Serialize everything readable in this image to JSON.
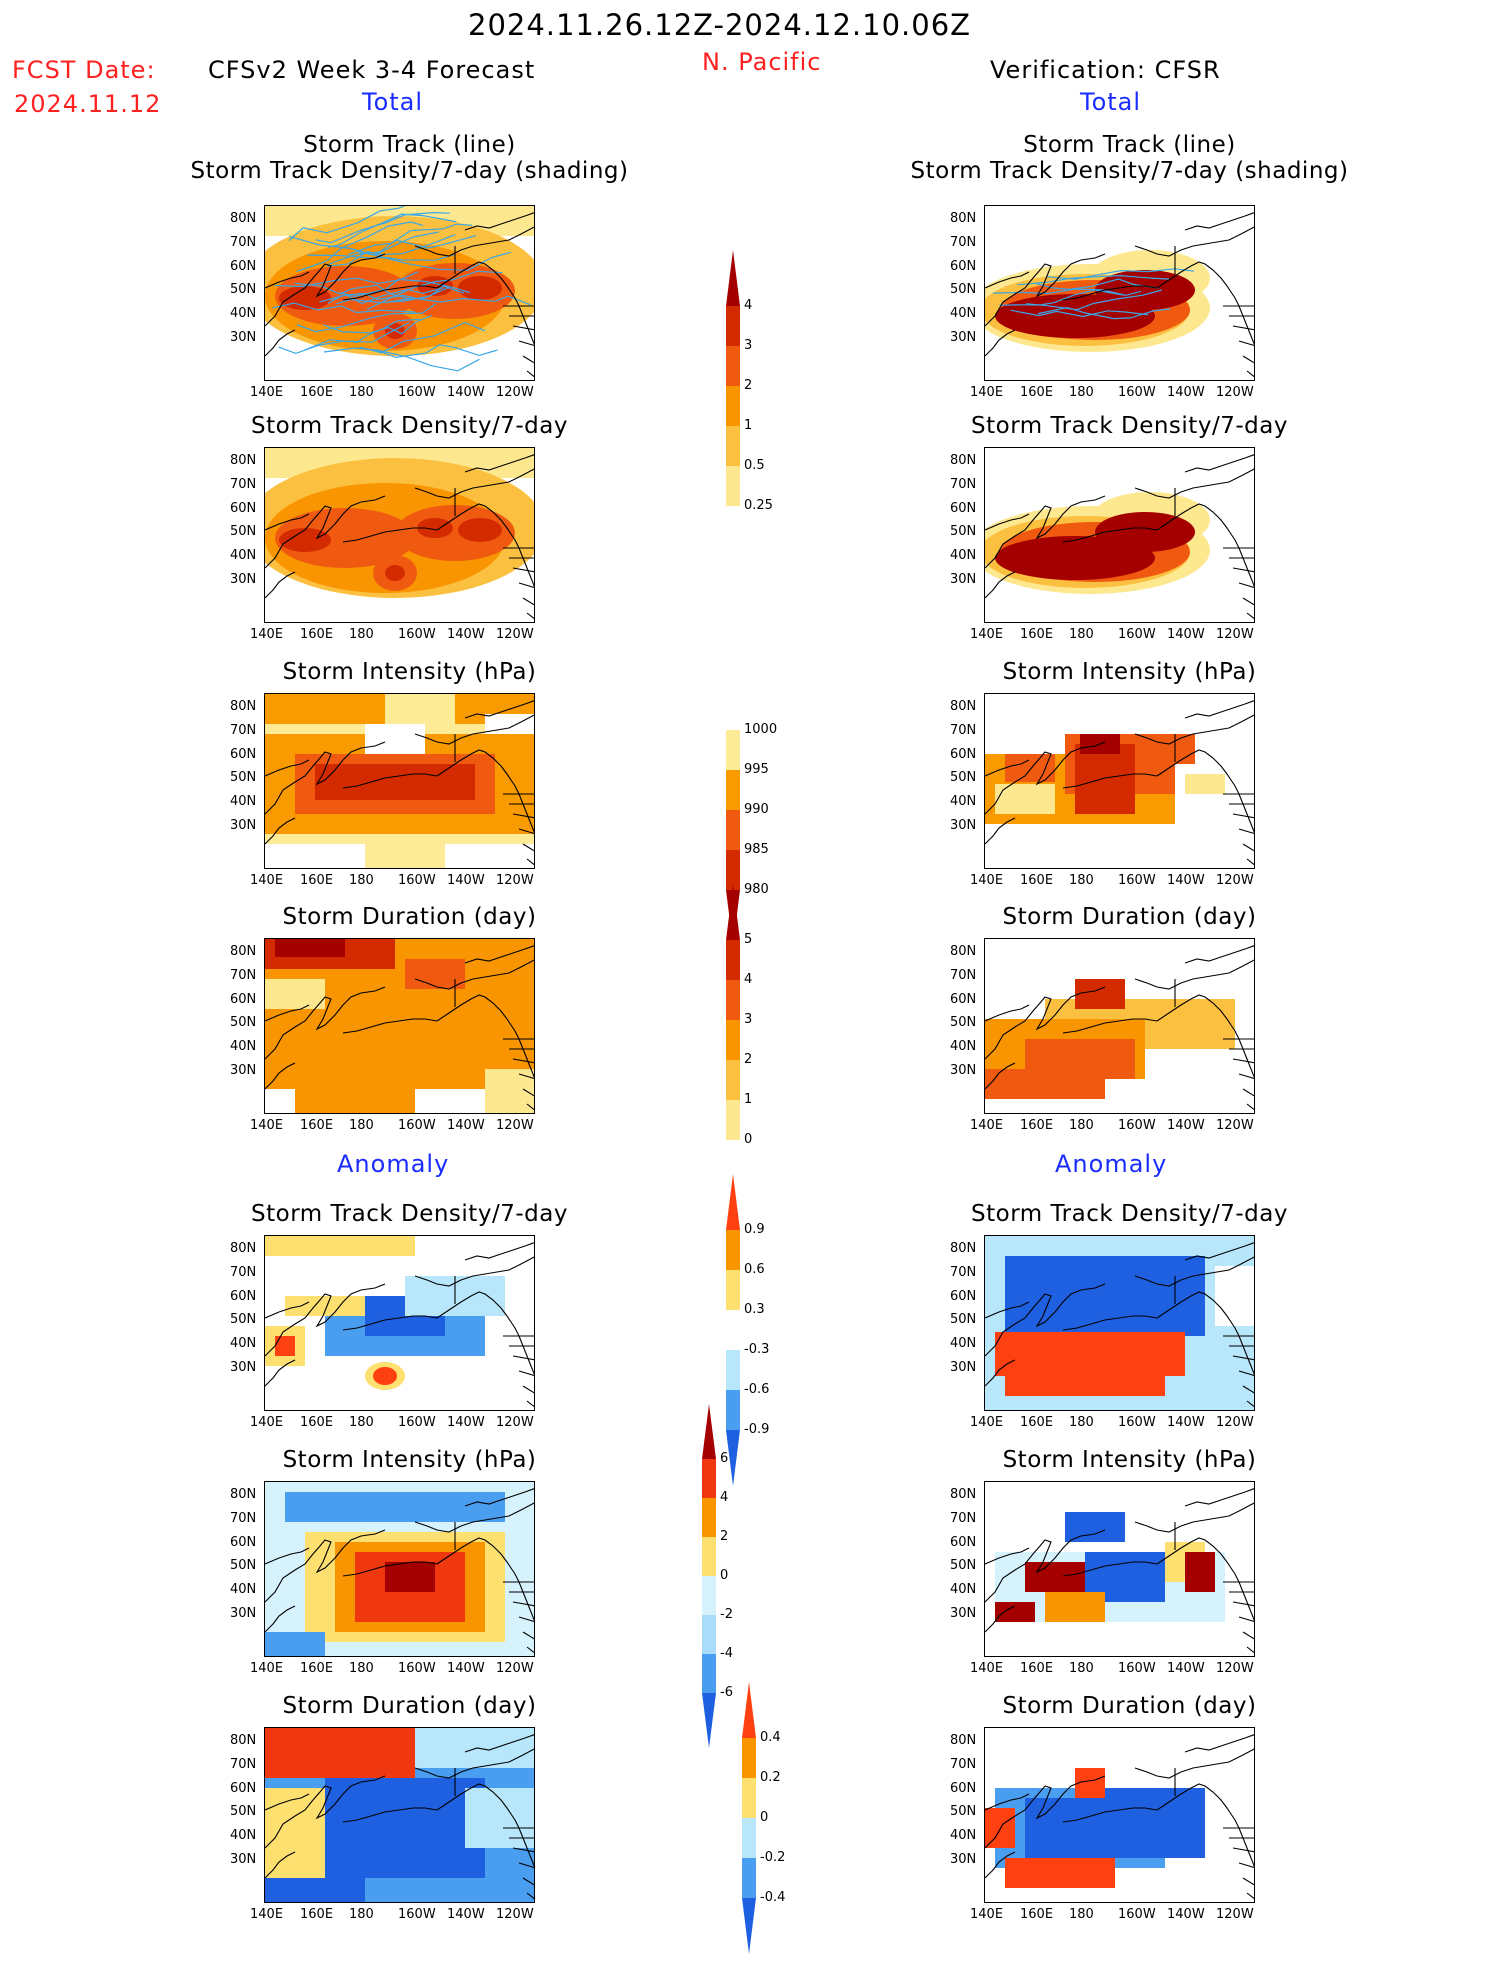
{
  "header": {
    "period": "2024.11.26.12Z-2024.12.10.06Z",
    "fcst_date_label": "FCST Date:",
    "fcst_date_value": "2024.11.12",
    "forecast_title": "CFSv2 Week 3-4 Forecast",
    "region": "N. Pacific",
    "verification_title": "Verification: CFSR",
    "total_label_left": "Total",
    "total_label_right": "Total",
    "anomaly_label_left": "Anomaly",
    "anomaly_label_right": "Anomaly"
  },
  "panel_titles": {
    "track_line": "Storm Track (line)",
    "track_density_shading": "Storm Track Density/7-day (shading)",
    "track_density": "Storm Track Density/7-day",
    "intensity": "Storm Intensity (hPa)",
    "duration": "Storm Duration (day)"
  },
  "axes": {
    "lat_labels": [
      "80N",
      "70N",
      "60N",
      "50N",
      "40N",
      "30N"
    ],
    "lon_labels": [
      "140E",
      "160E",
      "180",
      "160W",
      "140W",
      "120W"
    ]
  },
  "colorbars": {
    "density": {
      "labels": [
        "4",
        "3",
        "2",
        "1",
        "0.5",
        "0.25"
      ],
      "colors": [
        "#a50000",
        "#d42a00",
        "#f05a10",
        "#f89500",
        "#fcc040",
        "#fde890",
        "#ffffff"
      ]
    },
    "intensity": {
      "labels": [
        "1000",
        "995",
        "990",
        "985",
        "980"
      ],
      "colors": [
        "#ffffff",
        "#fdeb98",
        "#f89a00",
        "#f05a10",
        "#d42a00",
        "#a50000"
      ]
    },
    "duration": {
      "labels": [
        "5",
        "4",
        "3",
        "2",
        "1",
        "0"
      ],
      "colors": [
        "#a50000",
        "#d42a00",
        "#f05a10",
        "#f89500",
        "#fcc040",
        "#fde890",
        "#ffffff"
      ]
    },
    "anom_density": {
      "labels": [
        "0.9",
        "0.6",
        "0.3",
        "-0.3",
        "-0.6",
        "-0.9"
      ],
      "colors": [
        "#ff4010",
        "#f89500",
        "#fde070",
        "#ffffff",
        "#b8e6fa",
        "#4a9ef0",
        "#1f60e0"
      ]
    },
    "anom_intensity": {
      "labels": [
        "6",
        "4",
        "2",
        "0",
        "-2",
        "-4",
        "-6"
      ],
      "colors": [
        "#a50000",
        "#f03810",
        "#f89500",
        "#fde070",
        "#d6f2fc",
        "#a8dcf8",
        "#4a9ef0",
        "#1f60e0"
      ]
    },
    "anom_duration": {
      "labels": [
        "0.4",
        "0.2",
        "0",
        "-0.2",
        "-0.4"
      ],
      "colors": [
        "#ff4010",
        "#f89500",
        "#fde070",
        "#b8e6fa",
        "#4a9ef0",
        "#1f60e0"
      ]
    }
  }
}
